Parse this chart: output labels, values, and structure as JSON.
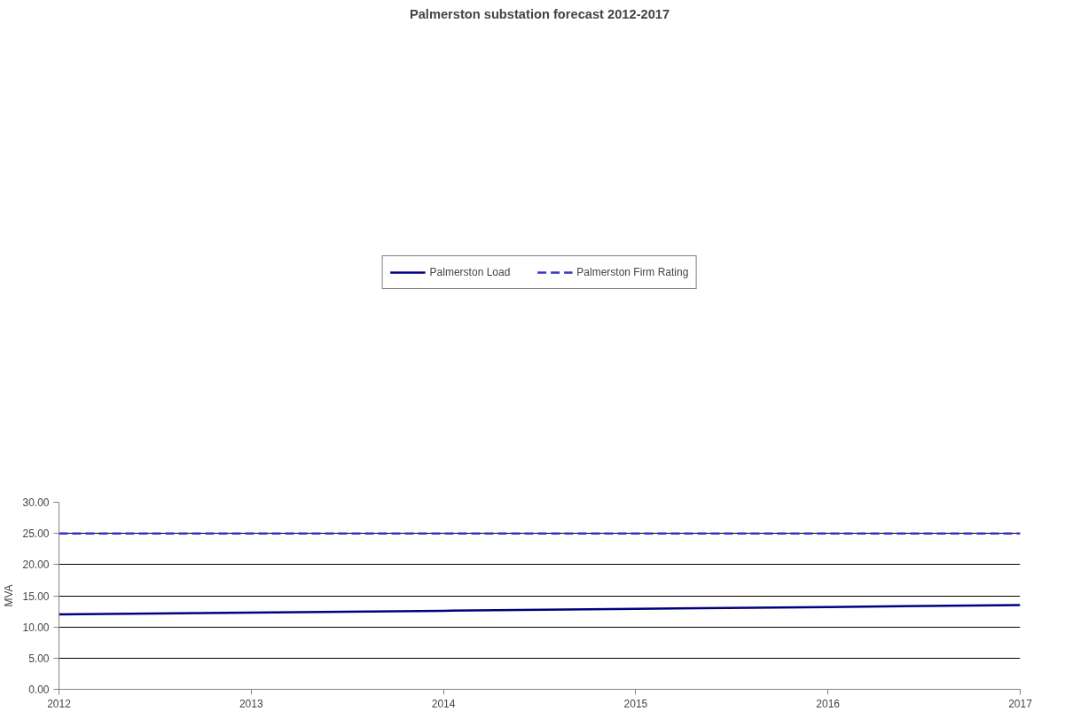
{
  "chart_data": {
    "type": "line",
    "title": "Palmerston substation forecast 2012-2017",
    "ylabel": "MVA",
    "x": [
      2012,
      2013,
      2014,
      2015,
      2016,
      2017
    ],
    "series": [
      {
        "name": "Palmerston Load",
        "color": "#000080",
        "values": [
          12.0,
          12.3,
          12.6,
          12.9,
          13.2,
          13.5
        ],
        "line_style": "solid"
      },
      {
        "name": "Palmerston Firm Rating",
        "color": "#3333cc",
        "values": [
          25,
          25,
          25,
          25,
          25,
          25
        ],
        "line_style": "dashed"
      }
    ],
    "xlim": [
      2012,
      2017
    ],
    "xticks": [
      2012,
      2013,
      2014,
      2015,
      2016,
      2017
    ],
    "ylim": [
      0,
      30
    ],
    "yticks": [
      {
        "value": 0,
        "label": "0.00"
      },
      {
        "value": 5,
        "label": "5.00"
      },
      {
        "value": 10,
        "label": "10.00"
      },
      {
        "value": 15,
        "label": "15.00"
      },
      {
        "value": 20,
        "label": "20.00"
      },
      {
        "value": 25,
        "label": "25.00"
      },
      {
        "value": 30,
        "label": "30.00"
      }
    ],
    "grid": "y",
    "legend": "top",
    "marker": "none"
  }
}
